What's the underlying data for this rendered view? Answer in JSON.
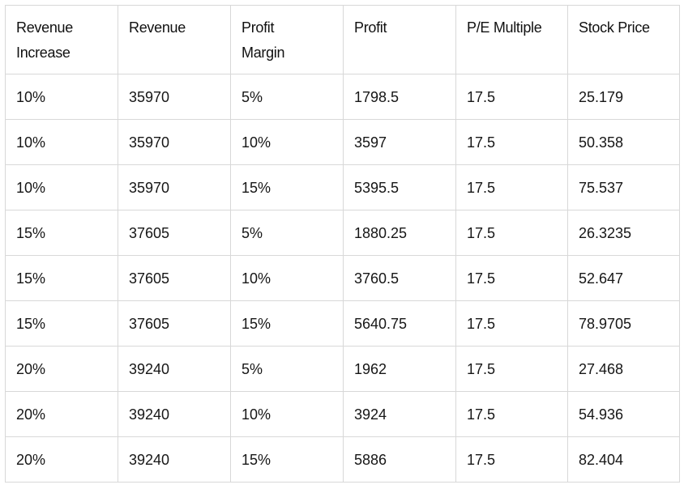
{
  "table": {
    "headers": [
      [
        "Revenue",
        "Increase"
      ],
      [
        "Revenue",
        ""
      ],
      [
        "Profit",
        "Margin"
      ],
      [
        "Profit",
        ""
      ],
      [
        "P/E Multiple",
        ""
      ],
      [
        "Stock Price",
        ""
      ]
    ],
    "rows": [
      [
        "10%",
        "35970",
        "5%",
        "1798.5",
        "17.5",
        "25.179"
      ],
      [
        "10%",
        "35970",
        "10%",
        "3597",
        "17.5",
        "50.358"
      ],
      [
        "10%",
        "35970",
        "15%",
        "5395.5",
        "17.5",
        "75.537"
      ],
      [
        "15%",
        "37605",
        "5%",
        "1880.25",
        "17.5",
        "26.3235"
      ],
      [
        "15%",
        "37605",
        "10%",
        "3760.5",
        "17.5",
        "52.647"
      ],
      [
        "15%",
        "37605",
        "15%",
        "5640.75",
        "17.5",
        "78.9705"
      ],
      [
        "20%",
        "39240",
        "5%",
        "1962",
        "17.5",
        "27.468"
      ],
      [
        "20%",
        "39240",
        "10%",
        "3924",
        "17.5",
        "54.936"
      ],
      [
        "20%",
        "39240",
        "15%",
        "5886",
        "17.5",
        "82.404"
      ]
    ]
  }
}
